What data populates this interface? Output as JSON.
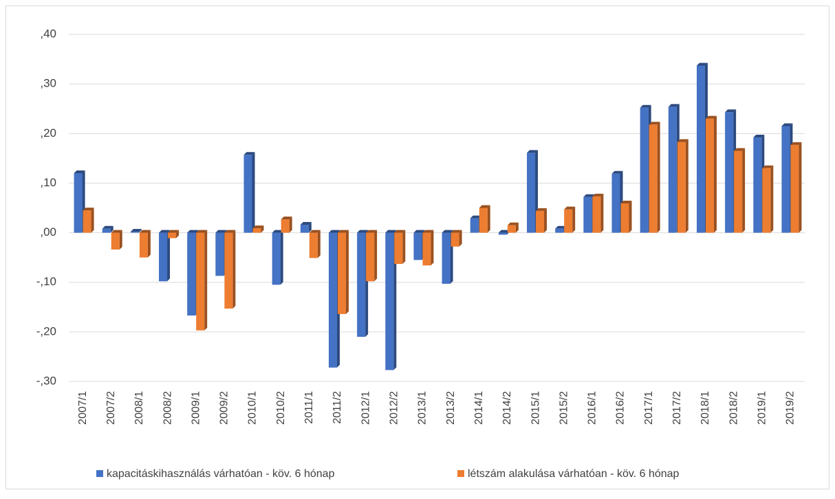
{
  "chart_data": {
    "type": "bar",
    "categories": [
      "2007/1",
      "2007/2",
      "2008/1",
      "2008/2",
      "2009/1",
      "2009/2",
      "2010/1",
      "2010/2",
      "2011/1",
      "2011/2",
      "2012/1",
      "2012/2",
      "2013/1",
      "2013/2",
      "2014/1",
      "2014/2",
      "2015/1",
      "2015/2",
      "2016/1",
      "2016/2",
      "2017/1",
      "2017/2",
      "2018/1",
      "2018/2",
      "2019/1",
      "2019/2"
    ],
    "series": [
      {
        "name": "kapacitáskihasználás várhatóan - köv. 6 hónap",
        "color": "#4472c4",
        "values": [
          0.12,
          0.008,
          0.002,
          -0.098,
          -0.167,
          -0.087,
          0.157,
          -0.105,
          0.016,
          -0.272,
          -0.21,
          -0.277,
          -0.055,
          -0.103,
          0.029,
          -0.004,
          0.161,
          0.008,
          0.072,
          0.119,
          0.252,
          0.254,
          0.337,
          0.243,
          0.192,
          0.215
        ]
      },
      {
        "name": "létszám alakulása várhatóan - köv. 6 hónap",
        "color": "#ed7d31",
        "values": [
          0.045,
          -0.034,
          -0.05,
          -0.011,
          -0.197,
          -0.153,
          0.009,
          0.027,
          -0.051,
          -0.164,
          -0.098,
          -0.063,
          -0.066,
          -0.028,
          0.05,
          0.015,
          0.044,
          0.047,
          0.073,
          0.059,
          0.218,
          0.183,
          0.23,
          0.165,
          0.13,
          0.177
        ]
      }
    ],
    "ylim": [
      -0.3,
      0.4
    ],
    "yticks": [
      {
        "value": -0.3,
        "label": "-,30"
      },
      {
        "value": -0.2,
        "label": "-,20"
      },
      {
        "value": -0.1,
        "label": "-,10"
      },
      {
        "value": 0,
        "label": ",00"
      },
      {
        "value": 0.1,
        "label": ",10"
      },
      {
        "value": 0.2,
        "label": ",20"
      },
      {
        "value": 0.3,
        "label": ",30"
      },
      {
        "value": 0.4,
        "label": ",40"
      }
    ],
    "grid": true,
    "legend": "bottom"
  }
}
